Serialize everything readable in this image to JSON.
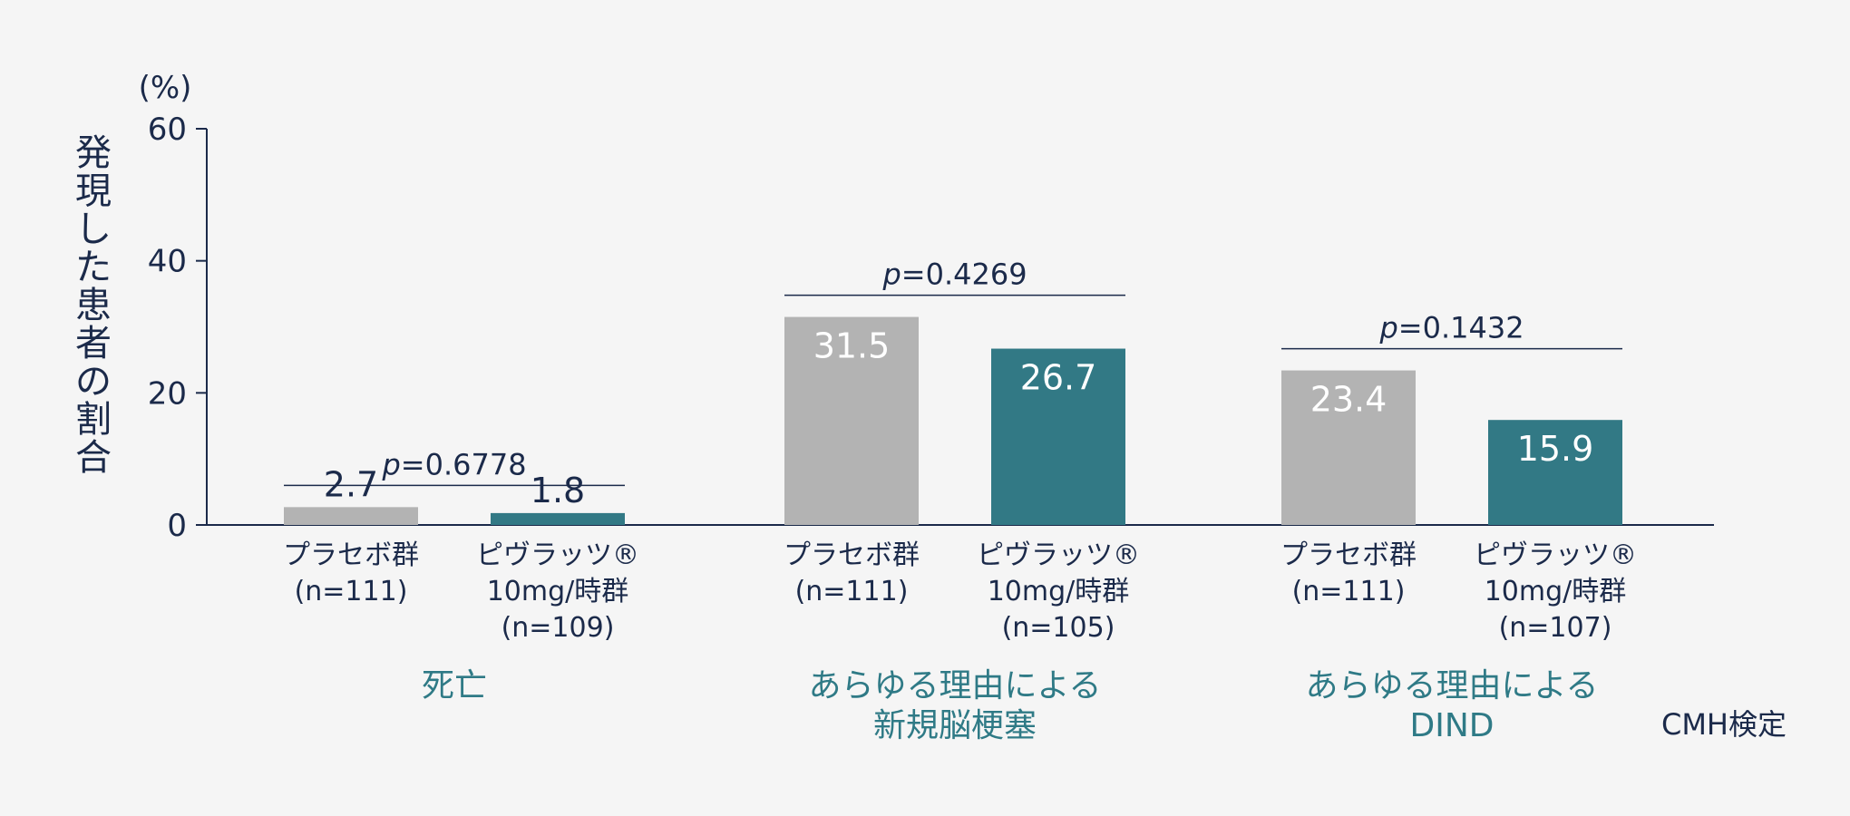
{
  "chart_data": {
    "type": "bar",
    "unit_label": "(%)",
    "ylabel": "発現した患者の割合",
    "ylim": [
      0,
      60
    ],
    "yticks": [
      0,
      20,
      40,
      60
    ],
    "grid": false,
    "footnote": "CMH検定",
    "colors": {
      "placebo": "#b3b3b3",
      "drug": "#327985",
      "group_label": "#2f7a86",
      "text": "#1b2a4a"
    },
    "groups": [
      {
        "label": [
          "死亡"
        ],
        "p_prefix": "p",
        "p_value": "=0.6778",
        "bars": [
          {
            "series": "placebo",
            "value": 2.7,
            "label": [
              "プラセボ群",
              "(n=111)"
            ]
          },
          {
            "series": "drug",
            "value": 1.8,
            "label": [
              "ピヴラッツ®",
              "10mg/時群",
              "(n=109)"
            ]
          }
        ]
      },
      {
        "label": [
          "あらゆる理由による",
          "新規脳梗塞"
        ],
        "p_prefix": "p",
        "p_value": "=0.4269",
        "bars": [
          {
            "series": "placebo",
            "value": 31.5,
            "label": [
              "プラセボ群",
              "(n=111)"
            ]
          },
          {
            "series": "drug",
            "value": 26.7,
            "label": [
              "ピヴラッツ®",
              "10mg/時群",
              "(n=105)"
            ]
          }
        ]
      },
      {
        "label": [
          "あらゆる理由による",
          "DIND"
        ],
        "p_prefix": "p",
        "p_value": "=0.1432",
        "bars": [
          {
            "series": "placebo",
            "value": 23.4,
            "label": [
              "プラセボ群",
              "(n=111)"
            ]
          },
          {
            "series": "drug",
            "value": 15.9,
            "label": [
              "ピヴラッツ®",
              "10mg/時群",
              "(n=107)"
            ]
          }
        ]
      }
    ]
  }
}
